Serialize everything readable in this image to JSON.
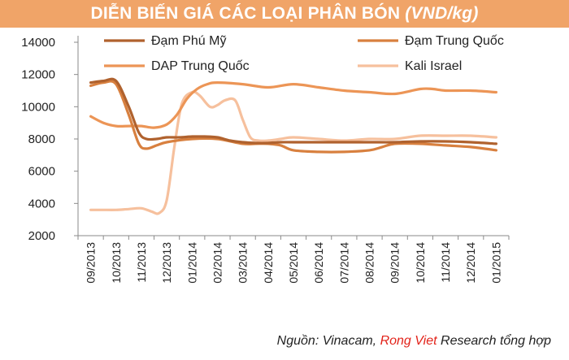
{
  "header": {
    "title_main": "DIỄN BIẾN GIÁ CÁC LOẠI PHÂN BÓN",
    "title_unit": "(VND/kg)",
    "background": "#f0a468"
  },
  "source": {
    "prefix": "Nguồn: Vinacam,",
    "highlight": "Rong Viet",
    "suffix": "Research tổng hợp",
    "highlight_color": "#e2231a"
  },
  "chart_data": {
    "type": "line",
    "title": "DIỄN BIẾN GIÁ CÁC LOẠI PHÂN BÓN (VND/kg)",
    "xlabel": "",
    "ylabel": "",
    "ylim": [
      2000,
      14000
    ],
    "yticks": [
      2000,
      4000,
      6000,
      8000,
      10000,
      12000,
      14000
    ],
    "categories": [
      "09/2013",
      "10/2013",
      "11/2013",
      "12/2013",
      "01/2014",
      "02/2014",
      "03/2014",
      "04/2014",
      "05/2014",
      "06/2014",
      "07/2014",
      "08/2014",
      "09/2014",
      "10/2014",
      "11/2014",
      "12/2014",
      "01/2015"
    ],
    "grid": false,
    "legend_placement": "top",
    "series": [
      {
        "name": "Đạm Phú Mỹ",
        "color": "#b0622e",
        "x": [
          0,
          0.5,
          1,
          1.5,
          1.9,
          2.2,
          2.6,
          3,
          3.5,
          4,
          4.5,
          5,
          5.5,
          6,
          6.5,
          7,
          7.5,
          8,
          9,
          10,
          11,
          12,
          13,
          14,
          15,
          16
        ],
        "values": [
          11500,
          11600,
          11600,
          10000,
          8400,
          8000,
          8000,
          8100,
          8100,
          8150,
          8150,
          8100,
          7900,
          7800,
          7750,
          7750,
          7800,
          7800,
          7800,
          7800,
          7800,
          7800,
          7850,
          7850,
          7800,
          7700
        ]
      },
      {
        "name": "Đạm Trung Quốc",
        "color": "#d8803f",
        "x": [
          0,
          0.5,
          1,
          1.5,
          1.9,
          2.2,
          2.6,
          3,
          4,
          5,
          6,
          6.5,
          7,
          7.5,
          8,
          9,
          10,
          11,
          11.5,
          12,
          13,
          14,
          15,
          16
        ],
        "values": [
          11300,
          11500,
          11400,
          9500,
          7700,
          7400,
          7600,
          7800,
          8000,
          8000,
          7700,
          7700,
          7700,
          7600,
          7300,
          7200,
          7200,
          7300,
          7500,
          7700,
          7700,
          7600,
          7500,
          7300
        ]
      },
      {
        "name": "DAP Trung Quốc",
        "color": "#ec9556",
        "x": [
          0,
          0.5,
          1,
          1.5,
          2,
          2.5,
          3,
          3.4,
          3.8,
          4.2,
          4.6,
          5,
          6,
          7,
          8,
          9,
          10,
          11,
          12,
          13,
          13.5,
          14,
          15,
          16
        ],
        "values": [
          9400,
          9000,
          8800,
          8800,
          8800,
          8700,
          8900,
          9500,
          10500,
          11100,
          11400,
          11500,
          11400,
          11200,
          11400,
          11200,
          11000,
          10900,
          10800,
          11100,
          11100,
          11000,
          11000,
          10900
        ]
      },
      {
        "name": "Kali Israel",
        "color": "#f6c09d",
        "x": [
          0,
          0.5,
          1,
          1.5,
          2,
          2.4,
          2.7,
          3,
          3.3,
          3.6,
          4,
          4.3,
          4.7,
          5,
          5.3,
          5.7,
          6,
          6.3,
          6.6,
          7,
          7.5,
          8,
          9,
          10,
          11,
          12,
          13,
          14,
          15,
          16
        ],
        "values": [
          3600,
          3600,
          3600,
          3650,
          3700,
          3500,
          3400,
          4200,
          7500,
          10200,
          10900,
          10700,
          10000,
          10100,
          10400,
          10400,
          9200,
          8100,
          7900,
          7900,
          8000,
          8100,
          8000,
          7900,
          8000,
          8000,
          8200,
          8200,
          8200,
          8100
        ]
      }
    ]
  }
}
